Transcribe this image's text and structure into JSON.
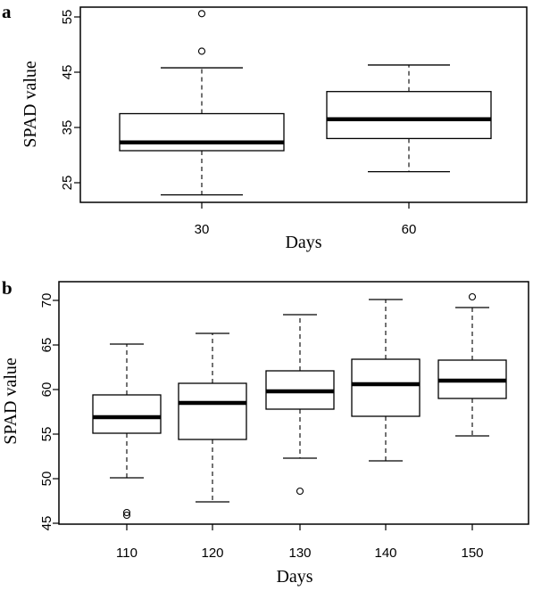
{
  "chart_data": [
    {
      "type": "box",
      "panel_label": "a",
      "xlabel": "Days",
      "ylabel": "SPAD value",
      "ylim": [
        21,
        57
      ],
      "yticks": [
        25,
        35,
        45,
        55
      ],
      "categories": [
        "30",
        "60"
      ],
      "boxes": [
        {
          "category": "30",
          "whisker_low": 22.8,
          "q1": 30.8,
          "median": 32.3,
          "q3": 37.5,
          "whisker_high": 45.8,
          "outliers": [
            48.8,
            55.6
          ]
        },
        {
          "category": "60",
          "whisker_low": 27.0,
          "q1": 33.0,
          "median": 36.5,
          "q3": 41.5,
          "whisker_high": 46.3,
          "outliers": []
        }
      ],
      "grid": false,
      "legend": "none"
    },
    {
      "type": "box",
      "panel_label": "b",
      "xlabel": "Days",
      "ylabel": "SPAD value",
      "ylim": [
        45,
        71
      ],
      "yticks": [
        45,
        50,
        55,
        60,
        65,
        70
      ],
      "categories": [
        "110",
        "120",
        "130",
        "140",
        "150"
      ],
      "boxes": [
        {
          "category": "110",
          "whisker_low": 50.1,
          "q1": 55.1,
          "median": 56.9,
          "q3": 59.4,
          "whisker_high": 65.1,
          "outliers": [
            45.9,
            46.2
          ]
        },
        {
          "category": "120",
          "whisker_low": 47.4,
          "q1": 54.4,
          "median": 58.5,
          "q3": 60.7,
          "whisker_high": 66.3,
          "outliers": []
        },
        {
          "category": "130",
          "whisker_low": 52.3,
          "q1": 57.8,
          "median": 59.8,
          "q3": 62.1,
          "whisker_high": 68.4,
          "outliers": [
            48.6
          ]
        },
        {
          "category": "140",
          "whisker_low": 52.0,
          "q1": 57.0,
          "median": 60.6,
          "q3": 63.4,
          "whisker_high": 70.1,
          "outliers": []
        },
        {
          "category": "150",
          "whisker_low": 54.8,
          "q1": 59.0,
          "median": 61.0,
          "q3": 63.3,
          "whisker_high": 69.2,
          "outliers": [
            70.4
          ]
        }
      ],
      "grid": false,
      "legend": "none"
    }
  ]
}
